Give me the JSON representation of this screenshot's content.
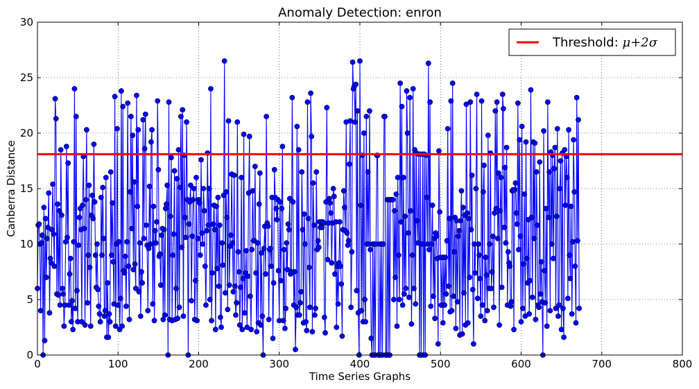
{
  "chart_data": {
    "type": "line",
    "title": "Anomaly Detection: enron",
    "xlabel": "Time Series Graphs",
    "ylabel": "Canberra Distance",
    "xlim": [
      0,
      800
    ],
    "ylim": [
      0,
      30
    ],
    "xticks": [
      "0",
      "100",
      "200",
      "300",
      "400",
      "500",
      "600",
      "700",
      "800"
    ],
    "yticks": [
      "0",
      "5",
      "10",
      "15",
      "20",
      "25",
      "30"
    ],
    "grid": true,
    "legend_position": "top-right",
    "series": [
      {
        "marker": "circle",
        "color": "#0000ff",
        "x_start": 0,
        "x_step": 1,
        "values": [
          6.0,
          11.7,
          11.8,
          10.0,
          4.0,
          10.1,
          10.8,
          0.0,
          13.3,
          1.3,
          12.3,
          7.0,
          10.5,
          11.5,
          14.6,
          3.8,
          8.7,
          8.3,
          11.3,
          15.4,
          10.9,
          8.0,
          23.1,
          21.3,
          5.5,
          13.6,
          5.4,
          13.0,
          4.5,
          18.5,
          12.6,
          6.0,
          5.5,
          2.6,
          4.5,
          10.2,
          18.8,
          10.6,
          17.3,
          4.5,
          7.3,
          8.7,
          3.0,
          4.9,
          2.3,
          10.2,
          24.0,
          4.2,
          21.5,
          5.8,
          3.0,
          9.9,
          12.4,
          13.2,
          11.3,
          3.0,
          13.5,
          17.9,
          11.4,
          2.7,
          14.0,
          20.3,
          4.7,
          9.0,
          15.3,
          7.9,
          2.6,
          12.6,
          14.4,
          12.3,
          19.0,
          13.8,
          9.0,
          6.1,
          10.0,
          5.9,
          4.4,
          3.7,
          3.0,
          14.2,
          9.0,
          15.1,
          10.5,
          3.5,
          4.0,
          16.0,
          1.6,
          6.5,
          1.6,
          3.7,
          3.0,
          16.5,
          9.0,
          13.7,
          8.4,
          4.6,
          23.3,
          2.6,
          10.0,
          20.4,
          4.5,
          10.2,
          2.3,
          5.1,
          23.8,
          2.6,
          22.4,
          7.6,
          7.4,
          8.9,
          4.4,
          10.2,
          22.7,
          8.0,
          3.2,
          14.7,
          21.5,
          11.4,
          19.8,
          7.7,
          15.6,
          8.2,
          6.0,
          23.4,
          13.4,
          20.3,
          5.7,
          10.1,
          3.5,
          7.5,
          6.5,
          21.2,
          10.5,
          18.6,
          21.7,
          11.7,
          9.9,
          4.0,
          9.6,
          15.2,
          10.0,
          19.2,
          20.3,
          4.6,
          13.4,
          3.1,
          11.2,
          10.1,
          12.0,
          22.9,
          16.7,
          8.9,
          9.1,
          6.3,
          10.8,
          11.4,
          3.2,
          11.3,
          3.6,
          13.2,
          13.6,
          15.3,
          0.0,
          22.8,
          3.2,
          12.5,
          17.8,
          3.1,
          9.0,
          10.9,
          16.6,
          3.2,
          6.0,
          15.9,
          3.3,
          18.5,
          4.3,
          15.1,
          21.5,
          9.7,
          22.1,
          3.5,
          18.0,
          12.4,
          10.6,
          21.0,
          14.0,
          0.0,
          11.8,
          13.8,
          15.3,
          4.9,
          10.7,
          14.0,
          15.0,
          3.2,
          6.7,
          16.0,
          3.1,
          10.5,
          14.0,
          13.7,
          9.0,
          17.6,
          11.0,
          10.0,
          15.0,
          13.0,
          8.0,
          4.5,
          11.2,
          18.2,
          11.7,
          15.0,
          5.0,
          24.0,
          3.1,
          7.4,
          11.8,
          13.5,
          11.3,
          2.3,
          13.4,
          7.8,
          14.2,
          6.2,
          11.7,
          3.4,
          2.5,
          10.1,
          8.1,
          14.4,
          26.5,
          5.6,
          14.7,
          12.4,
          4.1,
          21.1,
          6.3,
          9.8,
          10.8,
          16.3,
          10.1,
          5.7,
          16.2,
          6.2,
          3.6,
          4.7,
          21.0,
          9.3,
          7.5,
          2.7,
          6.1,
          16.0,
          2.3,
          6.9,
          19.9,
          3.8,
          7.4,
          9.4,
          2.5,
          7.1,
          14.6,
          19.7,
          5.3,
          2.3,
          9.5,
          14.8,
          10.3,
          10.3,
          17.0,
          7.4,
          2.1,
          10.1,
          2.9,
          13.6,
          16.4,
          2.7,
          9.2,
          3.5,
          0.0,
          9.6,
          11.6,
          7.3,
          21.5,
          11.9,
          11.6,
          3.2,
          9.5,
          9.6,
          8.0,
          14.2,
          1.5,
          6.5,
          16.7,
          14.2,
          13.2,
          12.2,
          14.0,
          7.6,
          3.1,
          13.8,
          6.7,
          13.2,
          18.8,
          3.1,
          9.5,
          2.4,
          4.2,
          10.1,
          7.7,
          11.8,
          11.3,
          14.1,
          7.3,
          7.5,
          23.2,
          13.8,
          4.5,
          7.5,
          0.5,
          4.3,
          20.6,
          3.6,
          18.5,
          3.6,
          4.7,
          5.7,
          16.5,
          11.3,
          2.9,
          12.7,
          10.0,
          3.0,
          2.2,
          22.8,
          12.3,
          7.9,
          4.3,
          23.6,
          19.7,
          2.1,
          15.5,
          11.7,
          3.6,
          4.2,
          16.5,
          9.5,
          10.3,
          9.7,
          12.0,
          11.5,
          12.0,
          11.5,
          12.0,
          11.9,
          3.4,
          2.0,
          13.8,
          22.3,
          8.6,
          11.9,
          14.1,
          13.7,
          12.8,
          8.3,
          11.9,
          15.0,
          14.3,
          7.3,
          12.0,
          2.5,
          8.0,
          4.6,
          8.3,
          12.0,
          8.0,
          6.4,
          1.7,
          11.3,
          14.8,
          13.3,
          11.2,
          21.0,
          11.0,
          9.9,
          10.3,
          17.2,
          21.1,
          4.3,
          9.3,
          26.4,
          24.0,
          24.2,
          21.0,
          24.4,
          5.8,
          22.0,
          3.8,
          0.0,
          26.5,
          13.5,
          4.0,
          18.0,
          3.0,
          20.0,
          5.0,
          3.0,
          21.5,
          10.0,
          16.5,
          10.0,
          22.0,
          9.5,
          1.5,
          0.0,
          10.0,
          0.0,
          10.0,
          0.0,
          10.0,
          18.0,
          18.0,
          0.0,
          0.0,
          10.0,
          0.0,
          10.0,
          0.0,
          10.0,
          21.5,
          21.5,
          0.0,
          0.0,
          14.0,
          0.0,
          14.0,
          0.0,
          14.0,
          14.0,
          14.0,
          14.0,
          5.0,
          13.0,
          7.0,
          14.5,
          2.6,
          16.0,
          9.0,
          5.0,
          24.5,
          12.0,
          22.4,
          4.5,
          16.0,
          5.5,
          12.5,
          6.0,
          23.8,
          20.0,
          11.0,
          5.2,
          23.2,
          13.0,
          2.8,
          9.0,
          24.0,
          6.0,
          18.5,
          4.6,
          18.2,
          12.1,
          10.1,
          18.1,
          0.0,
          18.1,
          0.0,
          10.0,
          18.1,
          0.0,
          18.1,
          0.0,
          18.0,
          14.2,
          10.0,
          26.3,
          9.5,
          22.8,
          4.4,
          10.0,
          13.5,
          5.3,
          10.5,
          3.3,
          11.0,
          10.7,
          8.7,
          1.0,
          18.4,
          12.9,
          8.8,
          4.5,
          8.8,
          2.9,
          8.8,
          4.5,
          8.8,
          5.5,
          10.3,
          20.4,
          6.2,
          12.3,
          3.9,
          22.9,
          4.0,
          24.5,
          5.3,
          9.3,
          12.4,
          2.4,
          12.1,
          4.8,
          10.7,
          11.2,
          1.8,
          12.1,
          14.8,
          1.9,
          13.3,
          5.6,
          12.6,
          2.7,
          22.6,
          12.8,
          2.9,
          12.3,
          7.0,
          22.8,
          11.3,
          16.2,
          5.9,
          1.0,
          10.0,
          7.4,
          15.0,
          23.5,
          5.1,
          10.0,
          9.0,
          6.9,
          3.5,
          22.9,
          4.5,
          14.7,
          17.1,
          3.1,
          8.8,
          7.2,
          4.0,
          19.8,
          6.0,
          10.0,
          18.2,
          6.0,
          7.5,
          10.7,
          4.3,
          12.8,
          22.0,
          13.2,
          22.8,
          10.5,
          16.4,
          2.7,
          13.0,
          16.0,
          6.1,
          23.5,
          22.2,
          11.5,
          16.9,
          10.1,
          18.7,
          4.5,
          9.3,
          8.3,
          8.0,
          4.4,
          4.8,
          14.8,
          14.9,
          2.3,
          14.9,
          15.5,
          12.8,
          11.8,
          22.7,
          9.5,
          19.4,
          10.7,
          3.0,
          20.6,
          4.2,
          8.2,
          14.5,
          3.5,
          19.2,
          8.7,
          6.5,
          12.2,
          3.7,
          6.7,
          23.9,
          12.4,
          5.2,
          19.2,
          10.5,
          19.1,
          3.2,
          16.5,
          11.7,
          4.5,
          4.3,
          17.4,
          5.5,
          8.4,
          4.8,
          0.0,
          20.2,
          7.6,
          4.7,
          13.2,
          2.6,
          22.8,
          12.4,
          16.5,
          4.0,
          18.3,
          10.0,
          18.0,
          8.7,
          16.8,
          18.7,
          4.2,
          12.5,
          20.4,
          3.5,
          4.5,
          15.0,
          17.5,
          2.3,
          18.2,
          4.2,
          1.6,
          18.5,
          13.5,
          17.9,
          16.0,
          5.1,
          20.3,
          9.0,
          6.9,
          13.4,
          3.7,
          10.2,
          19.4,
          14.7,
          8.0,
          2.9,
          23.2,
          10.3,
          21.2,
          4.2
        ]
      }
    ],
    "threshold": {
      "value": 18.1,
      "color": "#ff0000",
      "label_text": "Threshold: ",
      "label_math": "μ+2σ"
    }
  }
}
